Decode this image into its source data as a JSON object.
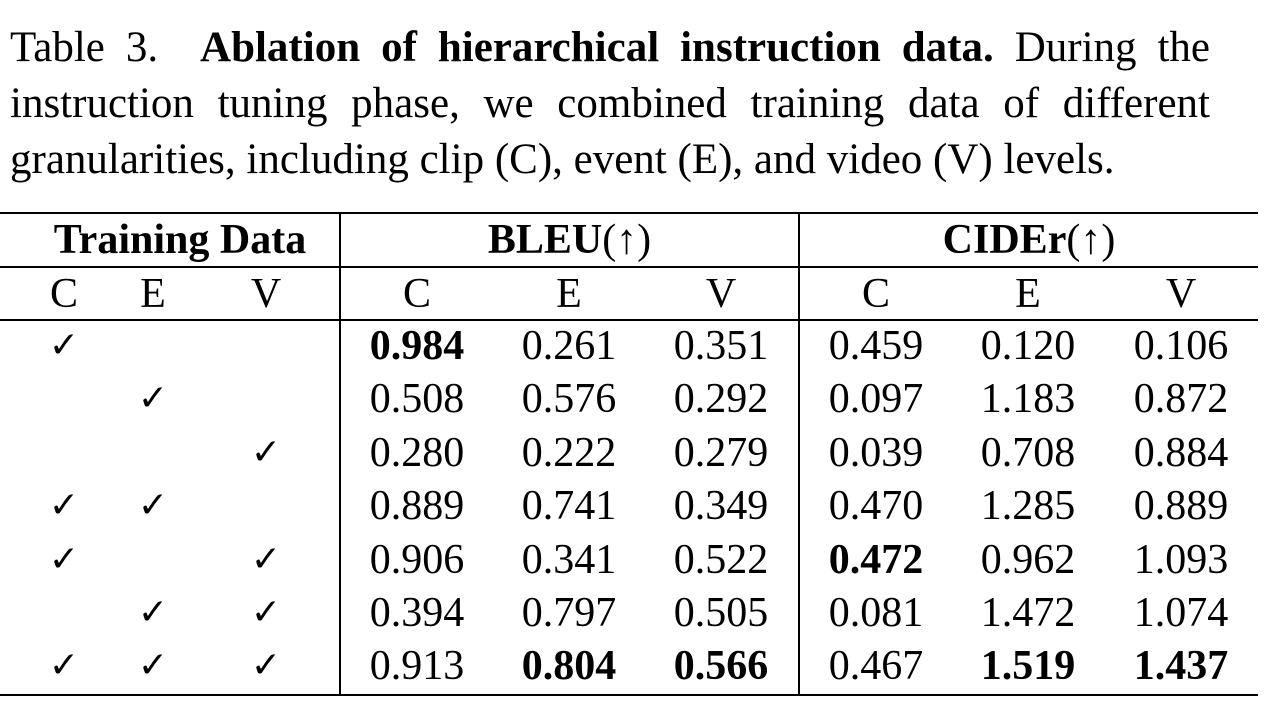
{
  "caption": {
    "label": "Table 3.",
    "title": "Ablation of hierarchical instruction data.",
    "body": "During the instruction tuning phase, we combined training data of different granularities, including clip (C), event (E), and video (V) levels."
  },
  "table": {
    "group_headers": {
      "training": "Training Data",
      "bleu": "BLEU(↑)",
      "cider": "CIDEr(↑)"
    },
    "sub_headers": {
      "training": [
        "C",
        "E",
        "V"
      ],
      "bleu": [
        "C",
        "E",
        "V"
      ],
      "cider": [
        "C",
        "E",
        "V"
      ]
    },
    "check_mark": "✓",
    "rows": [
      {
        "c": true,
        "e": false,
        "v": false,
        "bleu": [
          "0.984",
          "0.261",
          "0.351"
        ],
        "cider": [
          "0.459",
          "0.120",
          "0.106"
        ]
      },
      {
        "c": false,
        "e": true,
        "v": false,
        "bleu": [
          "0.508",
          "0.576",
          "0.292"
        ],
        "cider": [
          "0.097",
          "1.183",
          "0.872"
        ]
      },
      {
        "c": false,
        "e": false,
        "v": true,
        "bleu": [
          "0.280",
          "0.222",
          "0.279"
        ],
        "cider": [
          "0.039",
          "0.708",
          "0.884"
        ]
      },
      {
        "c": true,
        "e": true,
        "v": false,
        "bleu": [
          "0.889",
          "0.741",
          "0.349"
        ],
        "cider": [
          "0.470",
          "1.285",
          "0.889"
        ]
      },
      {
        "c": true,
        "e": false,
        "v": true,
        "bleu": [
          "0.906",
          "0.341",
          "0.522"
        ],
        "cider": [
          "0.472",
          "0.962",
          "1.093"
        ]
      },
      {
        "c": false,
        "e": true,
        "v": true,
        "bleu": [
          "0.394",
          "0.797",
          "0.505"
        ],
        "cider": [
          "0.081",
          "1.472",
          "1.074"
        ]
      },
      {
        "c": true,
        "e": true,
        "v": true,
        "bleu": [
          "0.913",
          "0.804",
          "0.566"
        ],
        "cider": [
          "0.467",
          "1.519",
          "1.437"
        ]
      }
    ],
    "bold_cells": [
      [
        0,
        "bleu",
        0
      ],
      [
        4,
        "cider",
        0
      ],
      [
        6,
        "bleu",
        1
      ],
      [
        6,
        "bleu",
        2
      ],
      [
        6,
        "cider",
        1
      ],
      [
        6,
        "cider",
        2
      ]
    ]
  }
}
